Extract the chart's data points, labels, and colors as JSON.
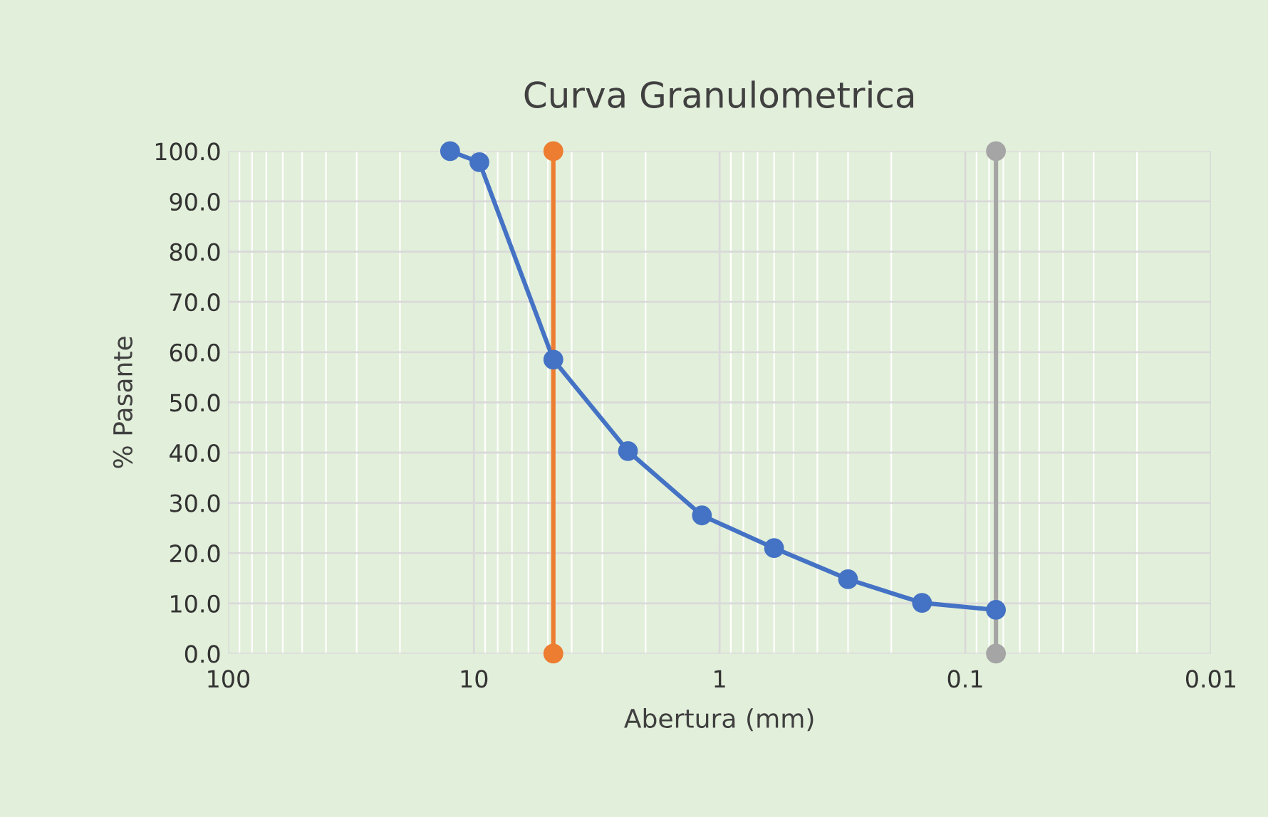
{
  "chart_data": {
    "type": "line",
    "title": "Curva Granulometrica",
    "xlabel": "Abertura (mm)",
    "ylabel": "% Pasante",
    "log": "x",
    "xlim": [
      100,
      0.01
    ],
    "xticks": [
      100,
      10,
      1,
      0.1,
      0.01
    ],
    "ylim": [
      0,
      100
    ],
    "yticks": [
      {
        "value": 0,
        "label": "0.0"
      },
      {
        "value": 10,
        "label": "10.0"
      },
      {
        "value": 20,
        "label": "20.0"
      },
      {
        "value": 30,
        "label": "30.0"
      },
      {
        "value": 40,
        "label": "40.0"
      },
      {
        "value": 50,
        "label": "50.0"
      },
      {
        "value": 60,
        "label": "60.0"
      },
      {
        "value": 70,
        "label": "70.0"
      },
      {
        "value": 80,
        "label": "80.0"
      },
      {
        "value": 90,
        "label": "90.0"
      },
      {
        "value": 100,
        "label": "100.0"
      }
    ],
    "grid": true,
    "marker": "circle",
    "line_style": "solid",
    "series": [
      {
        "color": "#4472c4",
        "x": [
          12.5,
          9.5,
          4.75,
          2.36,
          1.18,
          0.6,
          0.3,
          0.15,
          0.075
        ],
        "values": [
          100,
          97.8,
          58.5,
          40.3,
          27.5,
          21.0,
          14.8,
          10.1,
          8.7
        ]
      },
      {
        "color": "#ed7d31",
        "x": [
          4.75,
          4.75
        ],
        "values": [
          0,
          100
        ]
      },
      {
        "color": "#a5a5a5",
        "x": [
          0.075,
          0.075
        ],
        "values": [
          0,
          100
        ]
      }
    ]
  }
}
